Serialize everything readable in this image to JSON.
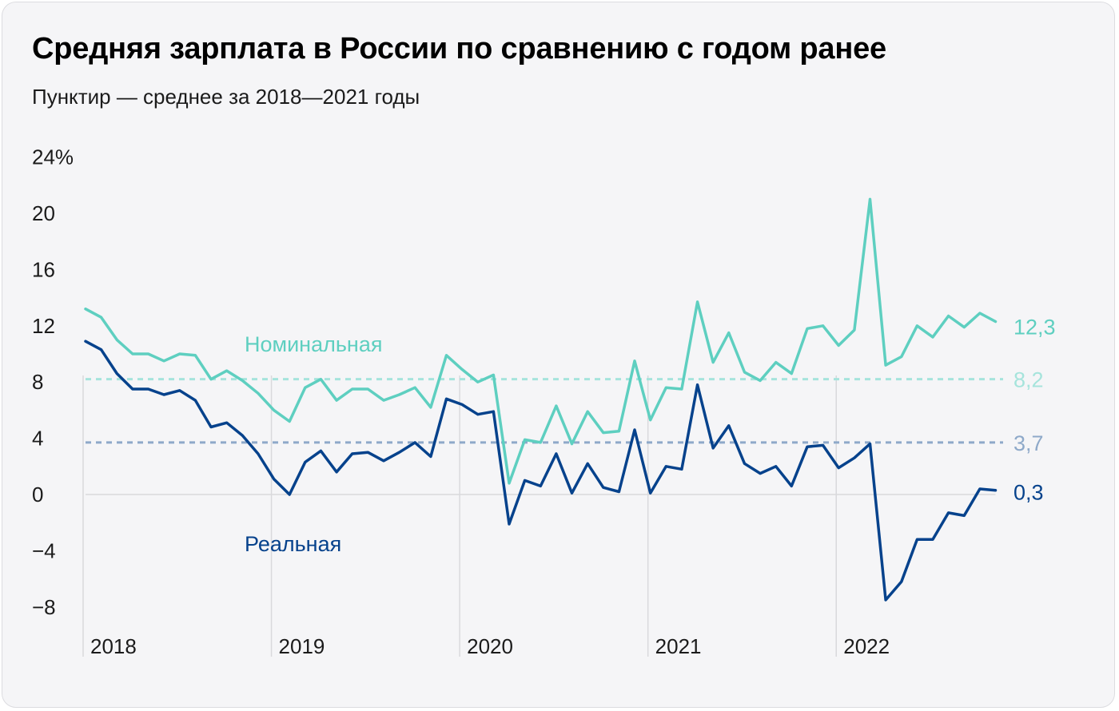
{
  "title": "Средняя зарплата в России по сравнению с годом ранее",
  "subtitle": "Пунктир — среднее за 2018—2021 годы",
  "colors": {
    "nominal": "#5ecfc0",
    "real": "#06428c",
    "nominal_avg": "#a6e4dc",
    "real_avg": "#8ea9c9",
    "grid": "#d9d9dc",
    "background": "#f5f5f7"
  },
  "chart_data": {
    "type": "line",
    "title": "Средняя зарплата в России по сравнению с годом ранее",
    "subtitle": "Пунктир — среднее за 2018—2021 годы",
    "ylim": [
      -8,
      24
    ],
    "y_ticks": [
      "24%",
      "20",
      "16",
      "12",
      "8",
      "4",
      "0",
      "−4",
      "−8"
    ],
    "x_ticks": [
      "2018",
      "2019",
      "2020",
      "2021",
      "2022"
    ],
    "x_start": "2018-01",
    "x_end": "2022-10",
    "series": [
      {
        "name": "Номинальная",
        "color": "#5ecfc0",
        "end_label": "12,3",
        "values": [
          13.2,
          12.6,
          11.0,
          10.0,
          10.0,
          9.5,
          10.0,
          9.9,
          8.2,
          8.8,
          8.1,
          7.2,
          6.0,
          5.2,
          7.6,
          8.2,
          6.7,
          7.5,
          7.5,
          6.7,
          7.1,
          7.6,
          6.2,
          9.9,
          8.9,
          8.0,
          8.5,
          0.8,
          3.9,
          3.7,
          6.3,
          3.6,
          5.9,
          4.4,
          4.5,
          9.5,
          5.3,
          7.6,
          7.5,
          13.7,
          9.4,
          11.5,
          8.7,
          8.1,
          9.4,
          8.6,
          11.8,
          12.0,
          10.6,
          11.7,
          21.0,
          9.2,
          9.8,
          12.0,
          11.2,
          12.7,
          11.9,
          12.9,
          12.3
        ],
        "average": 8.2,
        "average_label": "8,2"
      },
      {
        "name": "Реальная",
        "color": "#06428c",
        "end_label": "0,3",
        "values": [
          10.9,
          10.3,
          8.6,
          7.5,
          7.5,
          7.1,
          7.4,
          6.7,
          4.8,
          5.1,
          4.2,
          2.9,
          1.1,
          0.0,
          2.3,
          3.1,
          1.6,
          2.9,
          3.0,
          2.4,
          3.0,
          3.7,
          2.7,
          6.8,
          6.4,
          5.7,
          5.9,
          -2.1,
          1.0,
          0.6,
          2.9,
          0.1,
          2.2,
          0.5,
          0.2,
          4.6,
          0.1,
          2.0,
          1.8,
          7.8,
          3.3,
          4.9,
          2.2,
          1.5,
          2.0,
          0.6,
          3.4,
          3.5,
          1.9,
          2.6,
          3.6,
          -7.5,
          -6.2,
          -3.2,
          -3.2,
          -1.3,
          -1.5,
          0.4,
          0.3
        ],
        "average": 3.7,
        "average_label": "3,7"
      }
    ]
  }
}
